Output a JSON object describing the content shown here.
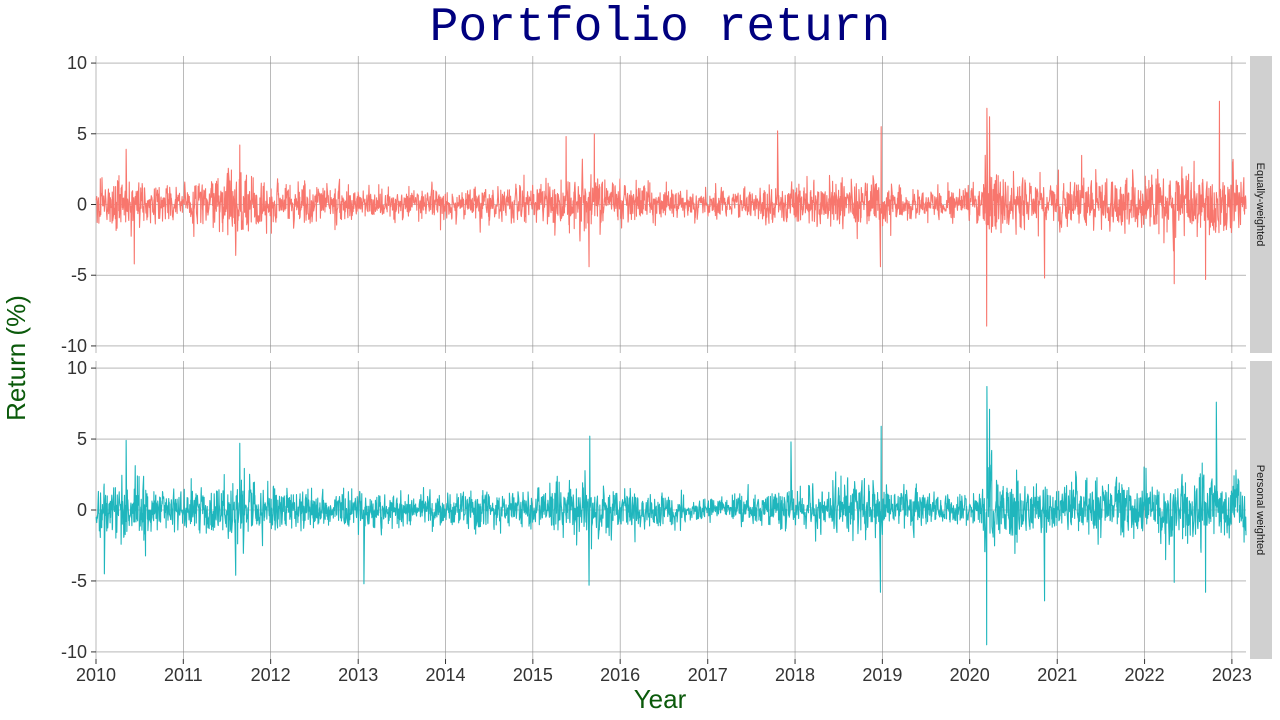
{
  "chart_data": {
    "type": "line",
    "title": "Portfolio return",
    "xlabel": "Year",
    "ylabel": "Return (%)",
    "x_ticks": [
      "2010",
      "2011",
      "2012",
      "2013",
      "2014",
      "2015",
      "2016",
      "2017",
      "2018",
      "2019",
      "2020",
      "2021",
      "2022",
      "2023"
    ],
    "y_ticks": [
      -10,
      -5,
      0,
      5,
      10
    ],
    "xlim": [
      "2010-01-01",
      "2023-03-01"
    ],
    "ylim": [
      -10.5,
      10.5
    ],
    "grid": true,
    "legend": "none",
    "colors": {
      "title": "#00007f",
      "axis_title": "#0b5a0b",
      "grid": "#8c8c8c",
      "strip": "#d0d0d0"
    },
    "panels": [
      {
        "name": "Equally-weighted",
        "color": "#f8766d",
        "seed": 17,
        "volatility": [
          [
            "2010-01-01",
            1.4
          ],
          [
            "2010-06-01",
            1.5
          ],
          [
            "2011-01-01",
            1.1
          ],
          [
            "2011-08-01",
            1.7
          ],
          [
            "2012-01-01",
            1.2
          ],
          [
            "2013-01-01",
            0.9
          ],
          [
            "2014-01-01",
            0.9
          ],
          [
            "2015-01-01",
            1.0
          ],
          [
            "2015-08-01",
            1.6
          ],
          [
            "2016-01-01",
            1.3
          ],
          [
            "2016-07-01",
            0.9
          ],
          [
            "2017-01-01",
            0.6
          ],
          [
            "2018-01-01",
            1.1
          ],
          [
            "2018-10-01",
            1.6
          ],
          [
            "2019-01-01",
            1.1
          ],
          [
            "2019-09-01",
            0.8
          ],
          [
            "2020-02-20",
            1.0
          ],
          [
            "2020-03-15",
            3.6
          ],
          [
            "2020-05-01",
            1.9
          ],
          [
            "2020-10-01",
            1.3
          ],
          [
            "2021-01-01",
            1.3
          ],
          [
            "2022-01-01",
            1.6
          ],
          [
            "2022-06-01",
            1.9
          ],
          [
            "2022-12-01",
            1.8
          ],
          [
            "2023-03-01",
            1.3
          ]
        ],
        "extremes": [
          [
            "2010-05-07",
            3.9
          ],
          [
            "2010-06-10",
            -4.2
          ],
          [
            "2011-08-08",
            -3.6
          ],
          [
            "2011-08-25",
            4.2
          ],
          [
            "2015-05-20",
            4.8
          ],
          [
            "2015-08-24",
            -4.4
          ],
          [
            "2015-09-15",
            5.0
          ],
          [
            "2017-10-20",
            5.2
          ],
          [
            "2018-12-24",
            -4.4
          ],
          [
            "2018-12-27",
            5.5
          ],
          [
            "2020-03-12",
            -8.6
          ],
          [
            "2020-03-13",
            6.8
          ],
          [
            "2020-03-24",
            6.2
          ],
          [
            "2020-11-09",
            -5.2
          ],
          [
            "2022-05-05",
            -5.6
          ],
          [
            "2022-11-10",
            7.3
          ],
          [
            "2022-09-13",
            -5.3
          ]
        ]
      },
      {
        "name": "Personal weighted",
        "color": "#1fb6bd",
        "seed": 41,
        "volatility": [
          [
            "2010-01-01",
            1.5
          ],
          [
            "2010-06-01",
            1.6
          ],
          [
            "2011-01-01",
            1.1
          ],
          [
            "2011-08-01",
            1.8
          ],
          [
            "2012-01-01",
            1.3
          ],
          [
            "2013-01-01",
            1.0
          ],
          [
            "2014-01-01",
            0.9
          ],
          [
            "2015-01-01",
            1.0
          ],
          [
            "2015-08-01",
            1.7
          ],
          [
            "2016-01-01",
            1.3
          ],
          [
            "2016-07-01",
            0.9
          ],
          [
            "2017-01-01",
            0.6
          ],
          [
            "2018-01-01",
            1.1
          ],
          [
            "2018-10-01",
            1.7
          ],
          [
            "2019-01-01",
            1.2
          ],
          [
            "2019-09-01",
            0.8
          ],
          [
            "2020-02-20",
            1.0
          ],
          [
            "2020-03-15",
            3.9
          ],
          [
            "2020-05-01",
            2.0
          ],
          [
            "2020-10-01",
            1.4
          ],
          [
            "2021-01-01",
            1.4
          ],
          [
            "2022-01-01",
            1.7
          ],
          [
            "2022-06-01",
            2.0
          ],
          [
            "2022-12-01",
            1.9
          ],
          [
            "2023-03-01",
            1.4
          ]
        ],
        "extremes": [
          [
            "2010-05-07",
            4.9
          ],
          [
            "2010-02-05",
            -4.5
          ],
          [
            "2011-08-08",
            -4.6
          ],
          [
            "2011-08-25",
            4.7
          ],
          [
            "2013-01-25",
            -5.2
          ],
          [
            "2015-08-24",
            -5.3
          ],
          [
            "2015-08-27",
            5.2
          ],
          [
            "2017-12-15",
            4.8
          ],
          [
            "2018-12-24",
            -5.8
          ],
          [
            "2018-12-27",
            5.9
          ],
          [
            "2020-03-12",
            -9.5
          ],
          [
            "2020-03-13",
            8.7
          ],
          [
            "2020-03-24",
            7.1
          ],
          [
            "2020-11-09",
            -6.4
          ],
          [
            "2022-05-05",
            -5.1
          ],
          [
            "2022-10-28",
            7.6
          ],
          [
            "2022-09-13",
            -5.8
          ]
        ]
      }
    ]
  }
}
